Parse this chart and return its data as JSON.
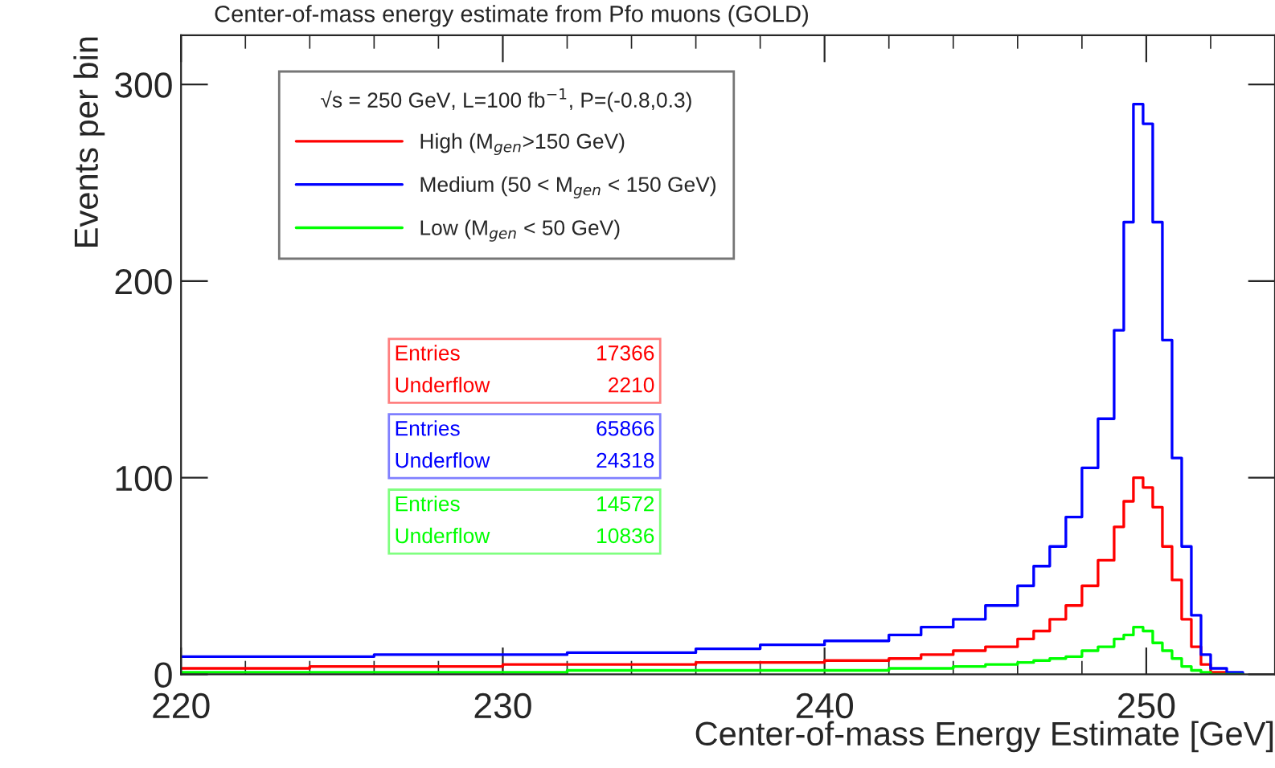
{
  "chart_data": {
    "type": "step",
    "title": "Center-of-mass energy estimate from Pfo muons (GOLD)",
    "xlabel": "Center-of-mass Energy Estimate [GeV]",
    "ylabel": "Events per bin",
    "legend_title": "√s = 250 GeV, L=100 fb$^{−1}$, P=(-0.8,0.3)",
    "series": [
      {
        "name": "High (M$_{gen}$>150 GeV)",
        "color": "#ff0000",
        "x": [
          220,
          222,
          224,
          226,
          228,
          230,
          232,
          234,
          236,
          238,
          240,
          242,
          243,
          244,
          245,
          246,
          246.5,
          247,
          247.5,
          248,
          248.5,
          249,
          249.3,
          249.6,
          249.9,
          250.2,
          250.5,
          250.8,
          251.1,
          251.4,
          251.7,
          252,
          252.5,
          253
        ],
        "values": [
          3,
          3,
          4,
          4,
          4,
          5,
          5,
          5,
          6,
          6,
          7,
          8,
          10,
          12,
          14,
          18,
          22,
          28,
          35,
          45,
          58,
          75,
          88,
          100,
          95,
          85,
          65,
          48,
          28,
          14,
          5,
          1,
          0,
          0
        ]
      },
      {
        "name": "Medium (50 < M$_{gen}$ < 150 GeV)",
        "color": "#0000ff",
        "x": [
          220,
          222,
          224,
          226,
          228,
          230,
          232,
          234,
          236,
          238,
          240,
          242,
          243,
          244,
          245,
          246,
          246.5,
          247,
          247.5,
          248,
          248.5,
          249,
          249.3,
          249.6,
          249.9,
          250.2,
          250.5,
          250.8,
          251.1,
          251.4,
          251.7,
          252,
          252.5,
          253
        ],
        "values": [
          9,
          9,
          9,
          10,
          10,
          10,
          11,
          11,
          13,
          15,
          17,
          20,
          24,
          28,
          35,
          45,
          55,
          65,
          80,
          105,
          130,
          175,
          230,
          290,
          280,
          230,
          170,
          110,
          65,
          30,
          10,
          3,
          1,
          0
        ]
      },
      {
        "name": "Low (M$_{gen}$ < 50 GeV)",
        "color": "#00ff00",
        "x": [
          220,
          222,
          224,
          226,
          228,
          230,
          232,
          234,
          236,
          238,
          240,
          242,
          243,
          244,
          245,
          246,
          246.5,
          247,
          247.5,
          248,
          248.5,
          249,
          249.3,
          249.6,
          249.9,
          250.2,
          250.5,
          250.8,
          251.1,
          251.4,
          251.7,
          252,
          252.5,
          253
        ],
        "values": [
          1,
          1,
          1,
          1,
          1,
          1,
          2,
          2,
          2,
          2,
          2,
          3,
          3,
          4,
          5,
          6,
          7,
          8,
          9,
          12,
          14,
          18,
          20,
          24,
          22,
          16,
          12,
          8,
          4,
          2,
          1,
          0,
          0,
          0
        ]
      }
    ],
    "annotations": [
      "Entries 17366",
      "Underflow 2210",
      "Entries 65866",
      "Underflow 24318",
      "Entries 14572",
      "Underflow 10836"
    ],
    "xlim": [
      220,
      254
    ],
    "ylim": [
      0,
      325
    ],
    "xticks": [
      220,
      230,
      240,
      250
    ],
    "yticks": [
      0,
      100,
      200,
      300
    ],
    "legend": "top left"
  }
}
